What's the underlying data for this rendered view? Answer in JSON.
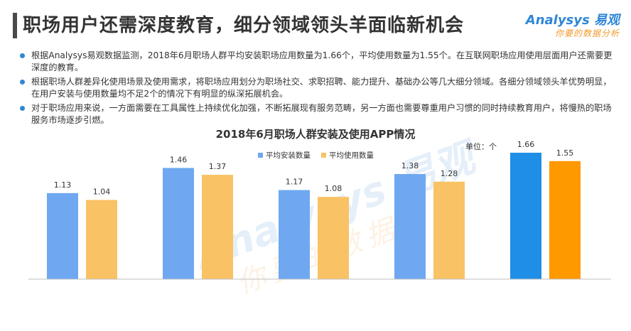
{
  "page": {
    "title": "职场用户还需深度教育，细分领域领头羊面临新机会"
  },
  "logo": {
    "main": "Analysys 易观",
    "sub": "你要的数据分析"
  },
  "bullets": [
    "根据Analysys易观数据监测，2018年6月职场人群平均安装职场应用数量为1.66个，平均使用数量为1.55个。在互联网职场应用使用层面用户还需要更深度的教育。",
    "根据职场人群差异化使用场景及使用需求，将职场应用划分为职场社交、求职招聘、能力提升、基础办公等几大细分领域。各细分领域领头羊优势明显，在用户安装与使用数量均不足2个的情况下有明显的纵深拓展机会。",
    "对于职场应用来说，一方面需要在工具属性上持续优化加强，不断拓展现有服务范畴，另一方面也需要尊重用户习惯的同时持续教育用户，将慢热的职场服务市场逐步引燃。"
  ],
  "colors": {
    "accent": "#2f86d6",
    "install": "#6fa8f0",
    "use": "#f9c264",
    "install_highlight": "#1f8ee6",
    "use_highlight": "#ff9900",
    "bullet_dot": "#2f86d6"
  },
  "chart_data": {
    "type": "bar",
    "title": "2018年6月职场人群安装及使用APP情况",
    "unit_label": "单位：个",
    "categories": [
      "",
      "",
      "",
      "",
      ""
    ],
    "series": [
      {
        "name": "平均安装数量",
        "values": [
          1.13,
          1.46,
          1.17,
          1.38,
          1.66
        ]
      },
      {
        "name": "平均使用数量",
        "values": [
          1.04,
          1.37,
          1.08,
          1.28,
          1.55
        ]
      }
    ],
    "highlight_group": 4,
    "ylim": [
      0,
      1.8
    ],
    "legend": "top-center",
    "grid": false,
    "xlabel": "",
    "ylabel": ""
  }
}
